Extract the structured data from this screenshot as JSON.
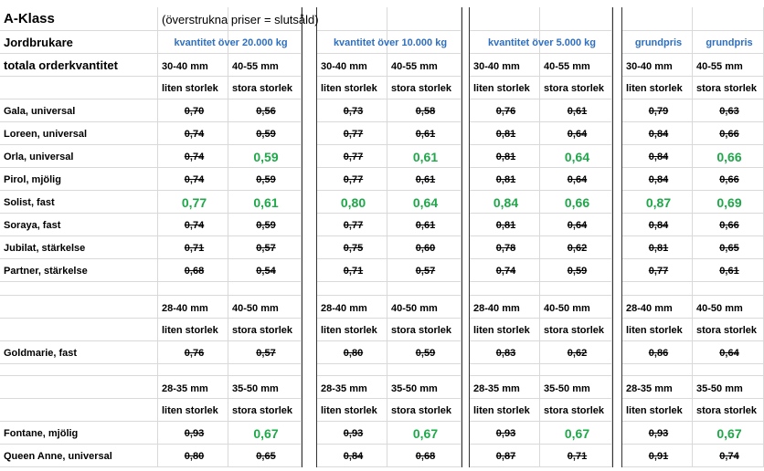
{
  "title": "A-Klass",
  "note": "(överstrukna priser = slutsåld)",
  "farmer_label": "Jordbrukare",
  "total_label": "totala orderkvantitet",
  "tiers": [
    "kvantitet över 20.000 kg",
    "kvantitet över 10.000 kg",
    "kvantitet över 5.000 kg",
    "grundpris",
    "grundpris"
  ],
  "sections": [
    {
      "sizes": [
        "30-40 mm",
        "40-55 mm"
      ],
      "size_names": [
        "liten storlek",
        "stora storlek"
      ],
      "rows": [
        {
          "name": "Gala, universal",
          "prices": [
            {
              "price": "0,70",
              "sold_out": true
            },
            {
              "price": "0,56",
              "sold_out": true
            },
            {
              "price": "0,73",
              "sold_out": true
            },
            {
              "price": "0,58",
              "sold_out": true
            },
            {
              "price": "0,76",
              "sold_out": true
            },
            {
              "price": "0,61",
              "sold_out": true
            },
            {
              "price": "0,79",
              "sold_out": true
            },
            {
              "price": "0,63",
              "sold_out": true
            }
          ]
        },
        {
          "name": "Loreen, universal",
          "prices": [
            {
              "price": "0,74",
              "sold_out": true
            },
            {
              "price": "0,59",
              "sold_out": true
            },
            {
              "price": "0,77",
              "sold_out": true
            },
            {
              "price": "0,61",
              "sold_out": true
            },
            {
              "price": "0,81",
              "sold_out": true
            },
            {
              "price": "0,64",
              "sold_out": true
            },
            {
              "price": "0,84",
              "sold_out": true
            },
            {
              "price": "0,66",
              "sold_out": true
            }
          ]
        },
        {
          "name": "Orla, universal",
          "prices": [
            {
              "price": "0,74",
              "sold_out": true
            },
            {
              "price": "0,59",
              "sold_out": false
            },
            {
              "price": "0,77",
              "sold_out": true
            },
            {
              "price": "0,61",
              "sold_out": false
            },
            {
              "price": "0,81",
              "sold_out": true
            },
            {
              "price": "0,64",
              "sold_out": false
            },
            {
              "price": "0,84",
              "sold_out": true
            },
            {
              "price": "0,66",
              "sold_out": false
            }
          ]
        },
        {
          "name": "Pirol, mjölig",
          "prices": [
            {
              "price": "0,74",
              "sold_out": true
            },
            {
              "price": "0,59",
              "sold_out": true
            },
            {
              "price": "0,77",
              "sold_out": true
            },
            {
              "price": "0,61",
              "sold_out": true
            },
            {
              "price": "0,81",
              "sold_out": true
            },
            {
              "price": "0,64",
              "sold_out": true
            },
            {
              "price": "0,84",
              "sold_out": true
            },
            {
              "price": "0,66",
              "sold_out": true
            }
          ]
        },
        {
          "name": "Solist, fast",
          "prices": [
            {
              "price": "0,77",
              "sold_out": false
            },
            {
              "price": "0,61",
              "sold_out": false
            },
            {
              "price": "0,80",
              "sold_out": false
            },
            {
              "price": "0,64",
              "sold_out": false
            },
            {
              "price": "0,84",
              "sold_out": false
            },
            {
              "price": "0,66",
              "sold_out": false
            },
            {
              "price": "0,87",
              "sold_out": false
            },
            {
              "price": "0,69",
              "sold_out": false
            }
          ]
        },
        {
          "name": "Soraya, fast",
          "prices": [
            {
              "price": "0,74",
              "sold_out": true
            },
            {
              "price": "0,59",
              "sold_out": true
            },
            {
              "price": "0,77",
              "sold_out": true
            },
            {
              "price": "0,61",
              "sold_out": true
            },
            {
              "price": "0,81",
              "sold_out": true
            },
            {
              "price": "0,64",
              "sold_out": true
            },
            {
              "price": "0,84",
              "sold_out": true
            },
            {
              "price": "0,66",
              "sold_out": true
            }
          ]
        },
        {
          "name": "Jubilat, stärkelse",
          "prices": [
            {
              "price": "0,71",
              "sold_out": true
            },
            {
              "price": "0,57",
              "sold_out": true
            },
            {
              "price": "0,75",
              "sold_out": true
            },
            {
              "price": "0,60",
              "sold_out": true
            },
            {
              "price": "0,78",
              "sold_out": true
            },
            {
              "price": "0,62",
              "sold_out": true
            },
            {
              "price": "0,81",
              "sold_out": true
            },
            {
              "price": "0,65",
              "sold_out": true
            }
          ]
        },
        {
          "name": "Partner, stärkelse",
          "prices": [
            {
              "price": "0,68",
              "sold_out": true
            },
            {
              "price": "0,54",
              "sold_out": true
            },
            {
              "price": "0,71",
              "sold_out": true
            },
            {
              "price": "0,57",
              "sold_out": true
            },
            {
              "price": "0,74",
              "sold_out": true
            },
            {
              "price": "0,59",
              "sold_out": true
            },
            {
              "price": "0,77",
              "sold_out": true
            },
            {
              "price": "0,61",
              "sold_out": true
            }
          ]
        }
      ]
    },
    {
      "sizes": [
        "28-40 mm",
        "40-50 mm"
      ],
      "size_names": [
        "liten storlek",
        "stora storlek"
      ],
      "rows": [
        {
          "name": "Goldmarie, fast",
          "prices": [
            {
              "price": "0,76",
              "sold_out": true
            },
            {
              "price": "0,57",
              "sold_out": true
            },
            {
              "price": "0,80",
              "sold_out": true
            },
            {
              "price": "0,59",
              "sold_out": true
            },
            {
              "price": "0,83",
              "sold_out": true
            },
            {
              "price": "0,62",
              "sold_out": true
            },
            {
              "price": "0,86",
              "sold_out": true
            },
            {
              "price": "0,64",
              "sold_out": true
            }
          ]
        }
      ]
    },
    {
      "sizes": [
        "28-35 mm",
        "35-50 mm"
      ],
      "size_names": [
        "liten storlek",
        "stora storlek"
      ],
      "rows": [
        {
          "name": "Fontane, mjölig",
          "prices": [
            {
              "price": "0,93",
              "sold_out": true
            },
            {
              "price": "0,67",
              "sold_out": false
            },
            {
              "price": "0,93",
              "sold_out": true
            },
            {
              "price": "0,67",
              "sold_out": false
            },
            {
              "price": "0,93",
              "sold_out": true
            },
            {
              "price": "0,67",
              "sold_out": false
            },
            {
              "price": "0,93",
              "sold_out": true
            },
            {
              "price": "0,67",
              "sold_out": false
            }
          ]
        },
        {
          "name": "Queen Anne, universal",
          "prices": [
            {
              "price": "0,80",
              "sold_out": true
            },
            {
              "price": "0,65",
              "sold_out": true
            },
            {
              "price": "0,84",
              "sold_out": true
            },
            {
              "price": "0,68",
              "sold_out": true
            },
            {
              "price": "0,87",
              "sold_out": true
            },
            {
              "price": "0,71",
              "sold_out": true
            },
            {
              "price": "0,91",
              "sold_out": true
            },
            {
              "price": "0,74",
              "sold_out": true
            }
          ]
        }
      ]
    }
  ]
}
